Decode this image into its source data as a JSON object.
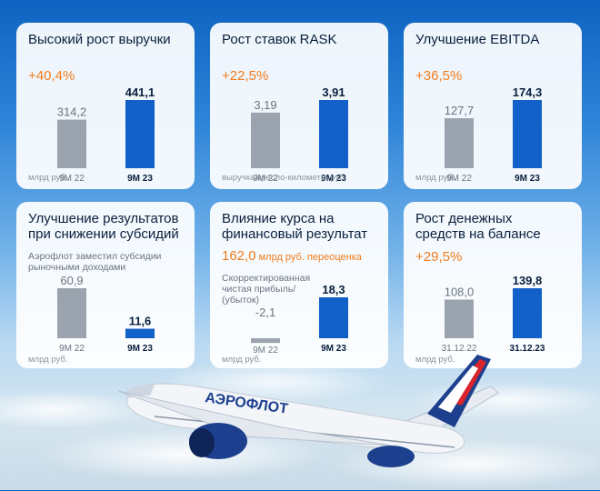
{
  "colors": {
    "prev_bar": "#9aa3ae",
    "curr_bar": "#1261c9",
    "growth": "#f07c1c",
    "title": "#0a1f3d"
  },
  "cards": [
    {
      "title": "Высокий рост выручки",
      "growth": "+40,4%",
      "unit": "млрд руб."
    },
    {
      "title": "Рост ставок RASK",
      "growth": "+22,5%",
      "unit": "выручка/кресло-километр, руб."
    },
    {
      "title": "Улучшение EBITDA",
      "growth": "+36,5%",
      "unit": "млрд руб."
    },
    {
      "title": "Улучшение результатов\nпри снижении субсидий",
      "note": "Аэрофлот заместил субсидии\nрыночными доходами",
      "unit": "млрд руб."
    },
    {
      "title": "Влияние курса на\nфинансовый результат",
      "growth": "162,0",
      "growth_note": " млрд руб. переоценка",
      "note": "Скорректированная\nчистая прибыль/\n(убыток)",
      "unit": "млрд руб."
    },
    {
      "title": "Рост денежных\nсредств на балансе",
      "growth": "+29,5%",
      "unit": "млрд руб."
    }
  ],
  "chart_data": [
    {
      "type": "bar",
      "title": "Высокий рост выручки",
      "categories": [
        "9М 22",
        "9М 23"
      ],
      "values": [
        314.2,
        441.1
      ],
      "labels": [
        "314,2",
        "441,1"
      ]
    },
    {
      "type": "bar",
      "title": "Рост ставок RASK",
      "categories": [
        "9М 22",
        "9М 23"
      ],
      "values": [
        3.19,
        3.91
      ],
      "labels": [
        "3,19",
        "3,91"
      ]
    },
    {
      "type": "bar",
      "title": "Улучшение EBITDA",
      "categories": [
        "9М 22",
        "9М 23"
      ],
      "values": [
        127.7,
        174.3
      ],
      "labels": [
        "127,7",
        "174,3"
      ]
    },
    {
      "type": "bar",
      "title": "Улучшение результатов при снижении субсидий",
      "categories": [
        "9М 22",
        "9М 23"
      ],
      "values": [
        60.9,
        11.6
      ],
      "labels": [
        "60,9",
        "11,6"
      ]
    },
    {
      "type": "bar",
      "title": "Влияние курса на финансовый результат",
      "categories": [
        "9М 22",
        "9М 23"
      ],
      "values": [
        -2.1,
        18.3
      ],
      "labels": [
        "-2,1",
        "18,3"
      ]
    },
    {
      "type": "bar",
      "title": "Рост денежных средств на балансе",
      "categories": [
        "31.12.22",
        "31.12.23"
      ],
      "values": [
        108.0,
        139.8
      ],
      "labels": [
        "108,0",
        "139,8"
      ]
    }
  ],
  "plane": {
    "livery_text": "АЭРОФЛОТ"
  }
}
